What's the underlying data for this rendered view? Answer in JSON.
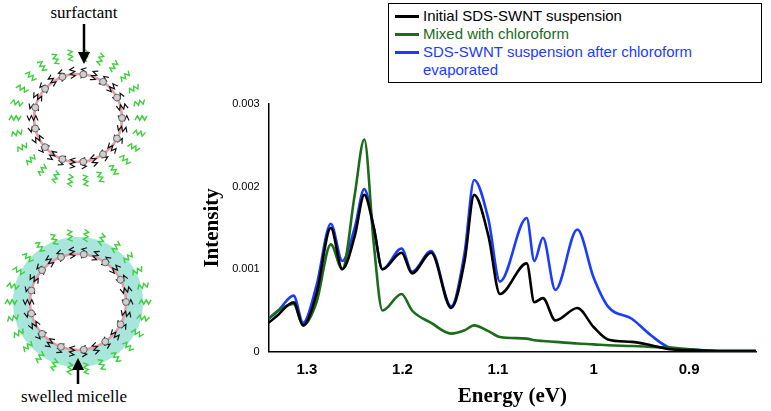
{
  "chart_data": {
    "type": "line",
    "x_label": "Energy (eV)",
    "y_label": "Intensity",
    "x": [
      1.34,
      1.33,
      1.314,
      1.304,
      1.29,
      1.275,
      1.263,
      1.25,
      1.24,
      1.23,
      1.221,
      1.201,
      1.19,
      1.17,
      1.149,
      1.135,
      1.125,
      1.11,
      1.098,
      1.07,
      1.062,
      1.053,
      1.04,
      1.017,
      1.0,
      0.985,
      0.96,
      0.94,
      0.92,
      0.9,
      0.87,
      0.83
    ],
    "series": [
      {
        "name": "Initial SDS-SWNT suspension",
        "color": "#000000",
        "values": [
          0.00035,
          0.00045,
          0.0006,
          0.00032,
          0.0007,
          0.0015,
          0.001,
          0.0014,
          0.0019,
          0.0015,
          0.001,
          0.0012,
          0.00095,
          0.0012,
          0.00053,
          0.0011,
          0.0019,
          0.0014,
          0.0007,
          0.00107,
          0.0006,
          0.00065,
          0.00038,
          0.00053,
          0.0003,
          0.00015,
          0.00012,
          8e-05,
          3e-05,
          2e-05,
          1e-05,
          1e-05
        ]
      },
      {
        "name": "Mixed with chloroform",
        "color": "#1a6b1a",
        "values": [
          0.0004,
          0.0005,
          0.00058,
          0.00032,
          0.0006,
          0.0013,
          0.001,
          0.0019,
          0.00257,
          0.0013,
          0.0005,
          0.0007,
          0.0005,
          0.00035,
          0.00022,
          0.00026,
          0.00032,
          0.00025,
          0.00018,
          0.00016,
          0.00014,
          0.00013,
          0.00012,
          0.0001,
          9e-05,
          8e-05,
          7e-05,
          6e-05,
          5e-05,
          3e-05,
          1e-05,
          1e-05
        ]
      },
      {
        "name": "SDS-SWNT suspension after chloroform evaporated",
        "color": "#1a3cff",
        "values": [
          0.0004,
          0.0005,
          0.00068,
          0.00035,
          0.0008,
          0.00155,
          0.0011,
          0.0015,
          0.00197,
          0.0015,
          0.001,
          0.00125,
          0.00097,
          0.00122,
          0.00055,
          0.0012,
          0.00208,
          0.0016,
          0.00085,
          0.00162,
          0.0011,
          0.00138,
          0.00075,
          0.00148,
          0.0009,
          0.00055,
          0.0004,
          0.0002,
          5e-05,
          3e-05,
          1e-05,
          1e-05
        ]
      }
    ],
    "xlim": [
      1.34,
      0.83
    ],
    "xticks": [
      1.3,
      1.2,
      1.1,
      1,
      0.9
    ],
    "ylim": [
      0,
      0.003
    ],
    "yticks": [
      0,
      0.001,
      0.002,
      0.003
    ],
    "grid": false,
    "legend": "upper right"
  },
  "diagram": {
    "top_label": "surfactant",
    "bottom_label": "swelled micelle"
  }
}
